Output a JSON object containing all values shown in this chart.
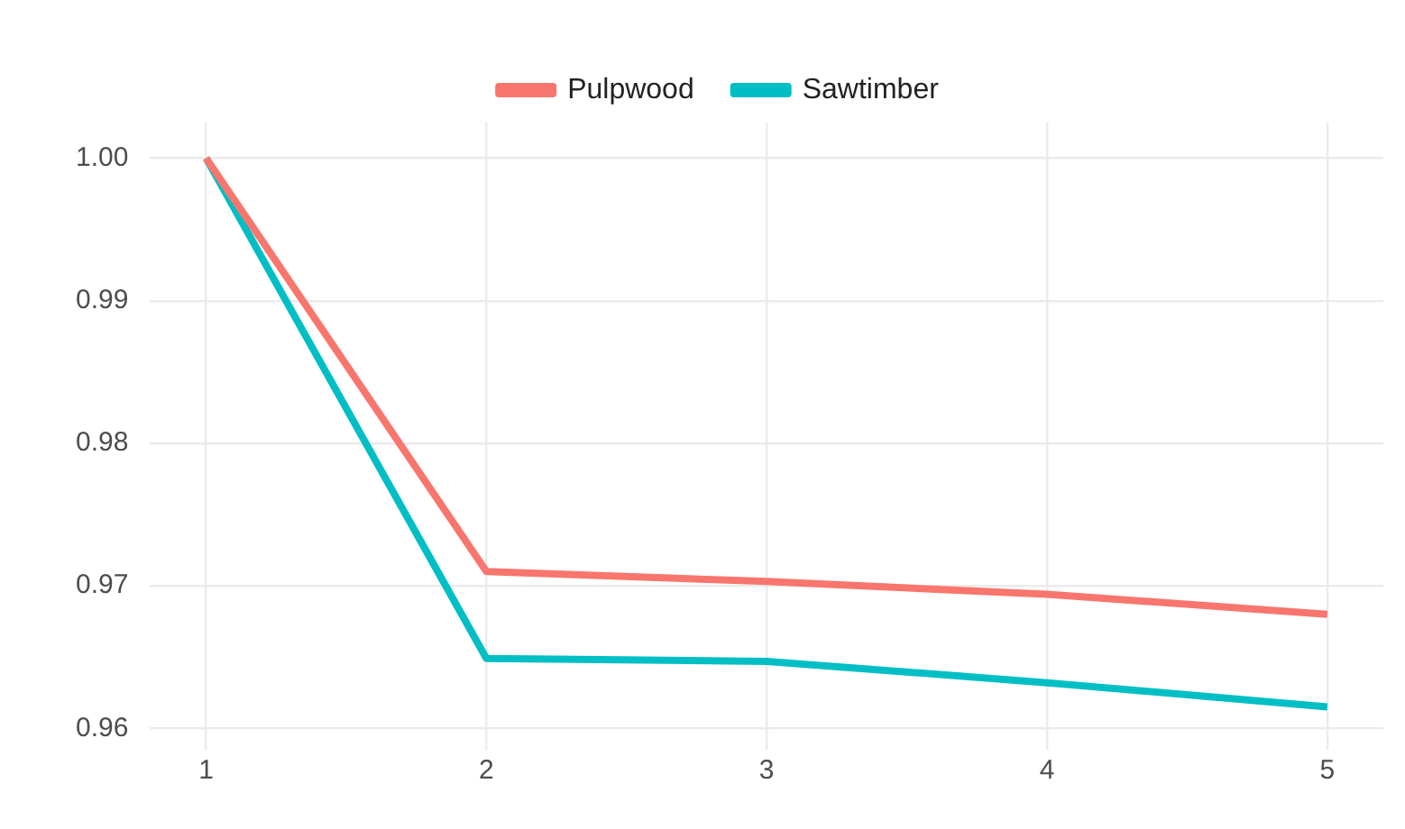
{
  "chart_data": {
    "type": "line",
    "x": [
      1,
      2,
      3,
      4,
      5
    ],
    "series": [
      {
        "name": "Pulpwood",
        "color": "#f8766d",
        "values": [
          1.0,
          0.971,
          0.9703,
          0.9694,
          0.968
        ]
      },
      {
        "name": "Sawtimber",
        "color": "#00bfc4",
        "values": [
          1.0,
          0.9649,
          0.9647,
          0.9632,
          0.9615
        ]
      }
    ],
    "xlim": [
      0.8,
      5.2
    ],
    "xticks": [
      1,
      2,
      3,
      4,
      5
    ],
    "ylim": [
      0.9585,
      1.0025
    ],
    "yticks": [
      {
        "value": 0.96,
        "label": "0.96"
      },
      {
        "value": 0.97,
        "label": "0.97"
      },
      {
        "value": 0.98,
        "label": "0.98"
      },
      {
        "value": 0.99,
        "label": "0.99"
      },
      {
        "value": 1.0,
        "label": "1.00"
      }
    ],
    "grid": true,
    "legend": "top",
    "marker": "none",
    "line_style": "solid"
  }
}
